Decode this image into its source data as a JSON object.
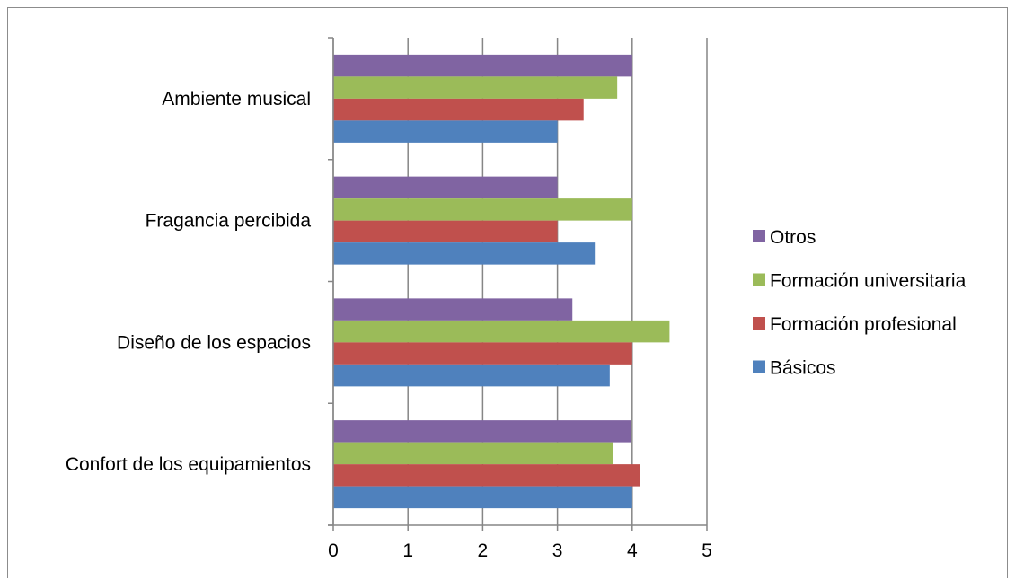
{
  "chart_data": {
    "type": "bar",
    "orientation": "horizontal",
    "categories": [
      "Ambiente musical",
      "Fragancia percibida",
      "Diseño de los espacios",
      "Confort de los equipamientos"
    ],
    "series": [
      {
        "name": "Otros",
        "color": "#8064a2",
        "values": [
          4.0,
          3.0,
          3.2,
          3.98
        ]
      },
      {
        "name": "Formación universitaria",
        "color": "#9bbb59",
        "values": [
          3.8,
          4.0,
          4.5,
          3.75
        ]
      },
      {
        "name": "Formación profesional",
        "color": "#c0504d",
        "values": [
          3.35,
          3.0,
          4.0,
          4.1
        ]
      },
      {
        "name": "Básicos",
        "color": "#4f81bd",
        "values": [
          3.0,
          3.5,
          3.7,
          4.0
        ]
      }
    ],
    "xlim": [
      0,
      5
    ],
    "xticks": [
      "0",
      "1",
      "2",
      "3",
      "4",
      "5"
    ],
    "grid": true,
    "legend_position": "right"
  }
}
